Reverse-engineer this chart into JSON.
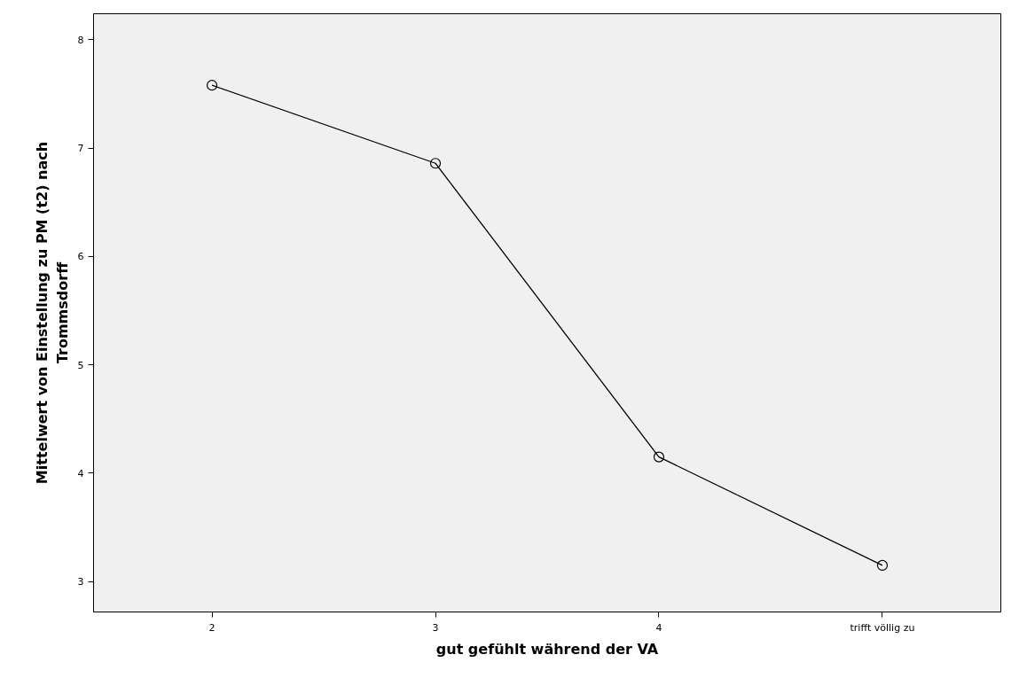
{
  "chart_data": {
    "type": "line",
    "xlabel": "gut gefühlt während der VA",
    "ylabel": "Mittelwert von Einstellung zu PM (t2) nach\nTrommsdorff",
    "categories": [
      "2",
      "3",
      "4",
      "trifft völlig zu"
    ],
    "series": [
      {
        "color": "#000000",
        "values": [
          7.58,
          6.86,
          4.15,
          3.15
        ]
      }
    ],
    "ylim": [
      2.72,
      8.24
    ],
    "yticks": [
      3,
      4,
      5,
      6,
      7,
      8
    ],
    "grid": false,
    "marker": "circle",
    "line_style": "solid"
  }
}
